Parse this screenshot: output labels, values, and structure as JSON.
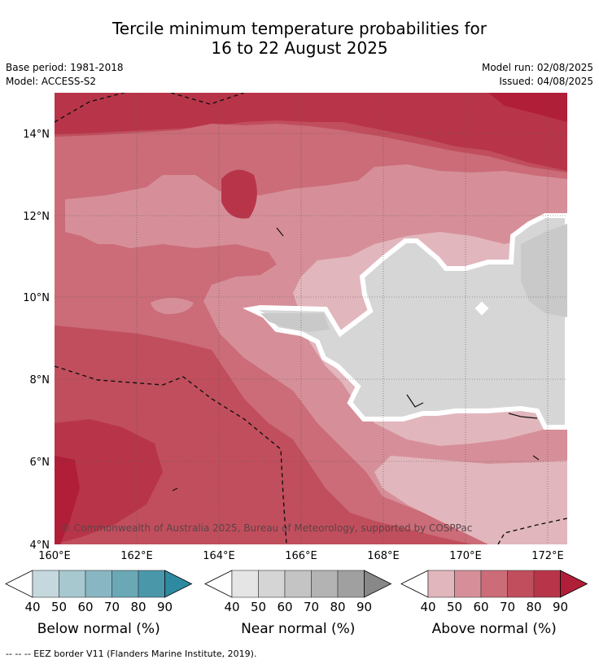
{
  "header": {
    "title_line1": "Tercile minimum temperature probabilities for",
    "title_line2": "16 to 22 August 2025",
    "base_period": "Base period: 1981-2018",
    "model": "Model: ACCESS-S2",
    "model_run": "Model run: 02/08/2025",
    "issued": "Issued: 04/08/2025"
  },
  "map": {
    "lon_ticks": [
      "160°E",
      "162°E",
      "164°E",
      "166°E",
      "168°E",
      "170°E",
      "172°E"
    ],
    "lat_ticks": [
      "14°N",
      "12°N",
      "10°N",
      "8°N",
      "6°N",
      "4°N"
    ],
    "copyright": "© Commonwealth of Australia 2025, Bureau of Meteorology, supported by COSPPac",
    "colors": {
      "above_40": "#e2b6bd",
      "above_50": "#d68f99",
      "above_60": "#cb6c78",
      "above_70": "#c14e5d",
      "above_80": "#b83549",
      "above_90": "#b01e38",
      "near_40": "#d6d6d6",
      "near_50": "#c9c9c9"
    }
  },
  "colorbars": [
    {
      "label": "Below normal (%)",
      "ticks": [
        "40",
        "50",
        "60",
        "70",
        "80",
        "90"
      ],
      "colors": [
        "#c5d8de",
        "#a7c8cf",
        "#88b7c3",
        "#6aa8b6",
        "#4a97aa",
        "#2e8aa0"
      ]
    },
    {
      "label": "Near normal (%)",
      "ticks": [
        "40",
        "50",
        "60",
        "70",
        "80",
        "90"
      ],
      "colors": [
        "#e5e5e5",
        "#d5d5d5",
        "#c4c4c4",
        "#b3b3b3",
        "#a0a0a0",
        "#888888"
      ]
    },
    {
      "label": "Above normal (%)",
      "ticks": [
        "40",
        "50",
        "60",
        "70",
        "80",
        "90"
      ],
      "colors": [
        "#e2b6bd",
        "#d68f99",
        "#cb6c78",
        "#c14e5d",
        "#b83549",
        "#b01e38"
      ]
    }
  ],
  "footer": "--  --  -- EEZ border V11 (Flanders Marine Institute, 2019)."
}
